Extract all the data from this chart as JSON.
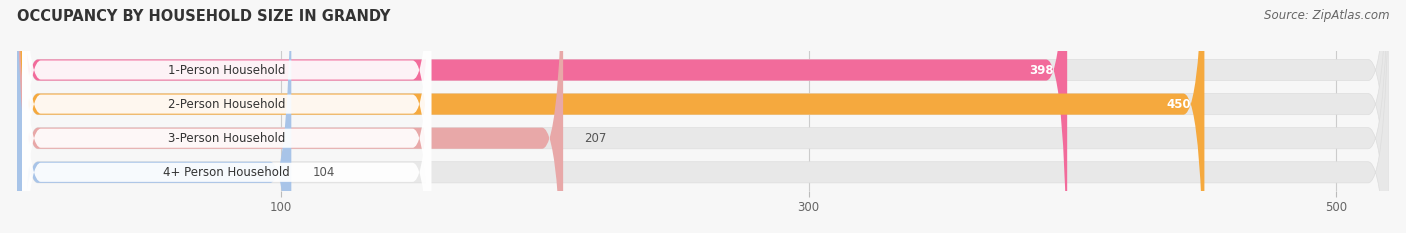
{
  "title": "OCCUPANCY BY HOUSEHOLD SIZE IN GRANDY",
  "source": "Source: ZipAtlas.com",
  "categories": [
    "1-Person Household",
    "2-Person Household",
    "3-Person Household",
    "4+ Person Household"
  ],
  "values": [
    398,
    450,
    207,
    104
  ],
  "bar_colors": [
    "#f26b9b",
    "#f5a93e",
    "#e8a8a8",
    "#a8c4e8"
  ],
  "label_colors": [
    "white",
    "white",
    "#888888",
    "#888888"
  ],
  "xlim_max": 520,
  "xticks": [
    100,
    300,
    500
  ],
  "background_color": "#f7f7f7",
  "bar_background_color": "#e8e8e8",
  "title_fontsize": 10.5,
  "source_fontsize": 8.5,
  "label_fontsize": 8.5,
  "value_fontsize": 8.5,
  "bar_height": 0.62,
  "figsize": [
    14.06,
    2.33
  ],
  "dpi": 100
}
